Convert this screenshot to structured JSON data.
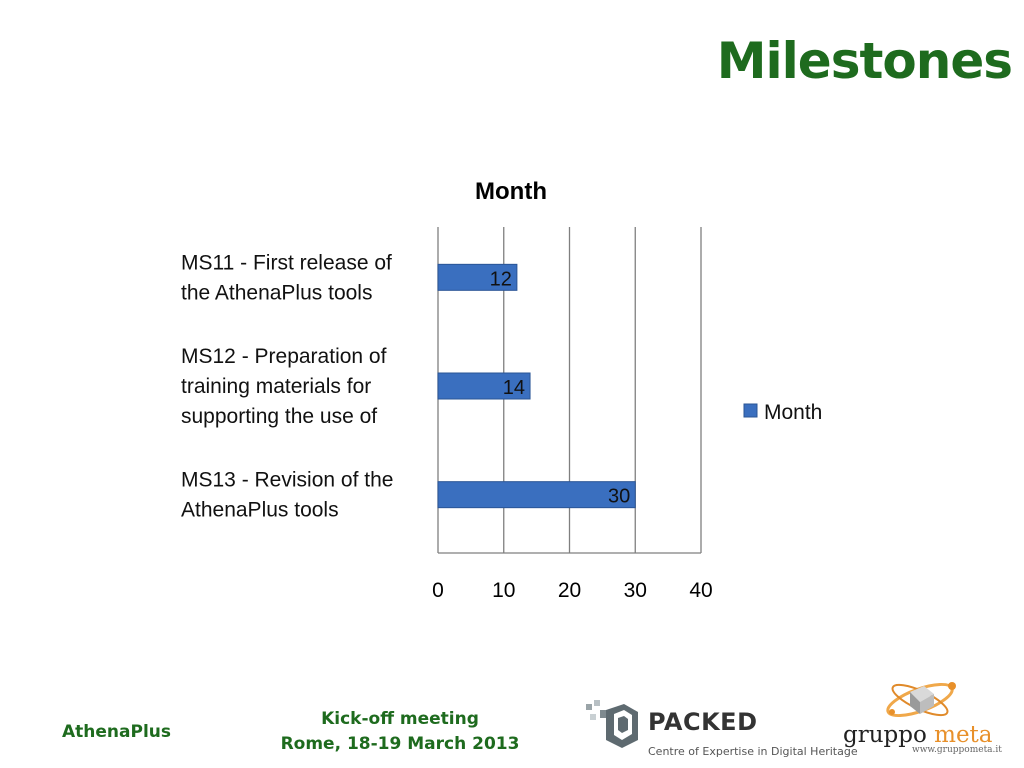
{
  "slide": {
    "title": "Milestones",
    "footer_left": "AthenaPlus",
    "footer_center_line1": "Kick-off meeting",
    "footer_center_line2": "Rome, 18-19 March 2013"
  },
  "logos": {
    "packed_name": "PACKED",
    "packed_tagline": "Centre of Expertise in Digital Heritage",
    "gruppo": "gruppo",
    "meta": "meta",
    "gruppo_url": "www.gruppometa.it"
  },
  "colors": {
    "title_green": "#1e6b1e",
    "bar_fill": "#3a6fbf",
    "bar_edge": "#2a5596",
    "gridline": "#7f7f7f"
  },
  "chart_data": {
    "type": "bar",
    "orientation": "horizontal",
    "title": "Month",
    "categories": [
      [
        "MS11 - First release of",
        "the AthenaPlus tools"
      ],
      [
        "MS12 - Preparation of",
        "training materials for",
        "supporting the use of"
      ],
      [
        "MS13 - Revision of the",
        "AthenaPlus tools"
      ]
    ],
    "series": [
      {
        "name": "Month",
        "values": [
          12,
          14,
          30
        ]
      }
    ],
    "xlim": [
      0,
      40
    ],
    "xticks": [
      0,
      10,
      20,
      30,
      40
    ],
    "data_labels": true,
    "grid": "vertical major gridlines",
    "legend_position": "right"
  }
}
